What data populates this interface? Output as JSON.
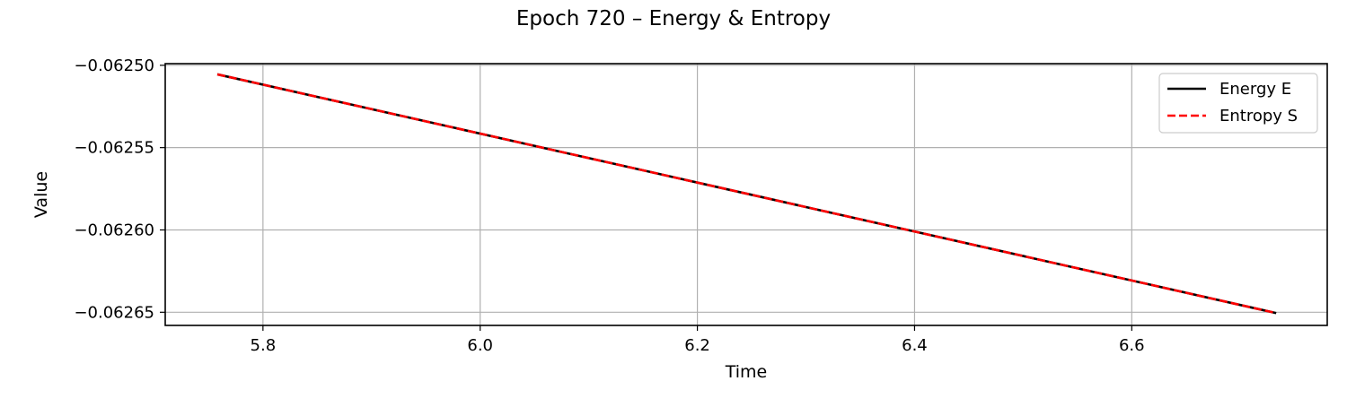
{
  "chart_data": {
    "type": "line",
    "title": "Epoch 720 – Energy & Entropy",
    "xlabel": "Time",
    "ylabel": "Value",
    "xlim": [
      5.71,
      6.78
    ],
    "ylim": [
      -0.062658,
      -0.062499
    ],
    "xticks": [
      5.8,
      6.0,
      6.2,
      6.4,
      6.6
    ],
    "xtick_labels": [
      "5.8",
      "6.0",
      "6.2",
      "6.4",
      "6.6"
    ],
    "yticks": [
      -0.0625,
      -0.06255,
      -0.0626,
      -0.06265
    ],
    "ytick_labels": [
      "−0.06250",
      "−0.06255",
      "−0.06260",
      "−0.06265"
    ],
    "grid": true,
    "legend_position": "top-right",
    "series": [
      {
        "name": "Energy E",
        "color": "#000000",
        "style": "solid",
        "x": [
          5.758,
          6.733
        ],
        "y": [
          -0.0625055,
          -0.0626505
        ]
      },
      {
        "name": "Entropy S",
        "color": "#ff0000",
        "style": "dashed",
        "x": [
          5.758,
          6.733
        ],
        "y": [
          -0.0625055,
          -0.0626505
        ]
      }
    ]
  }
}
